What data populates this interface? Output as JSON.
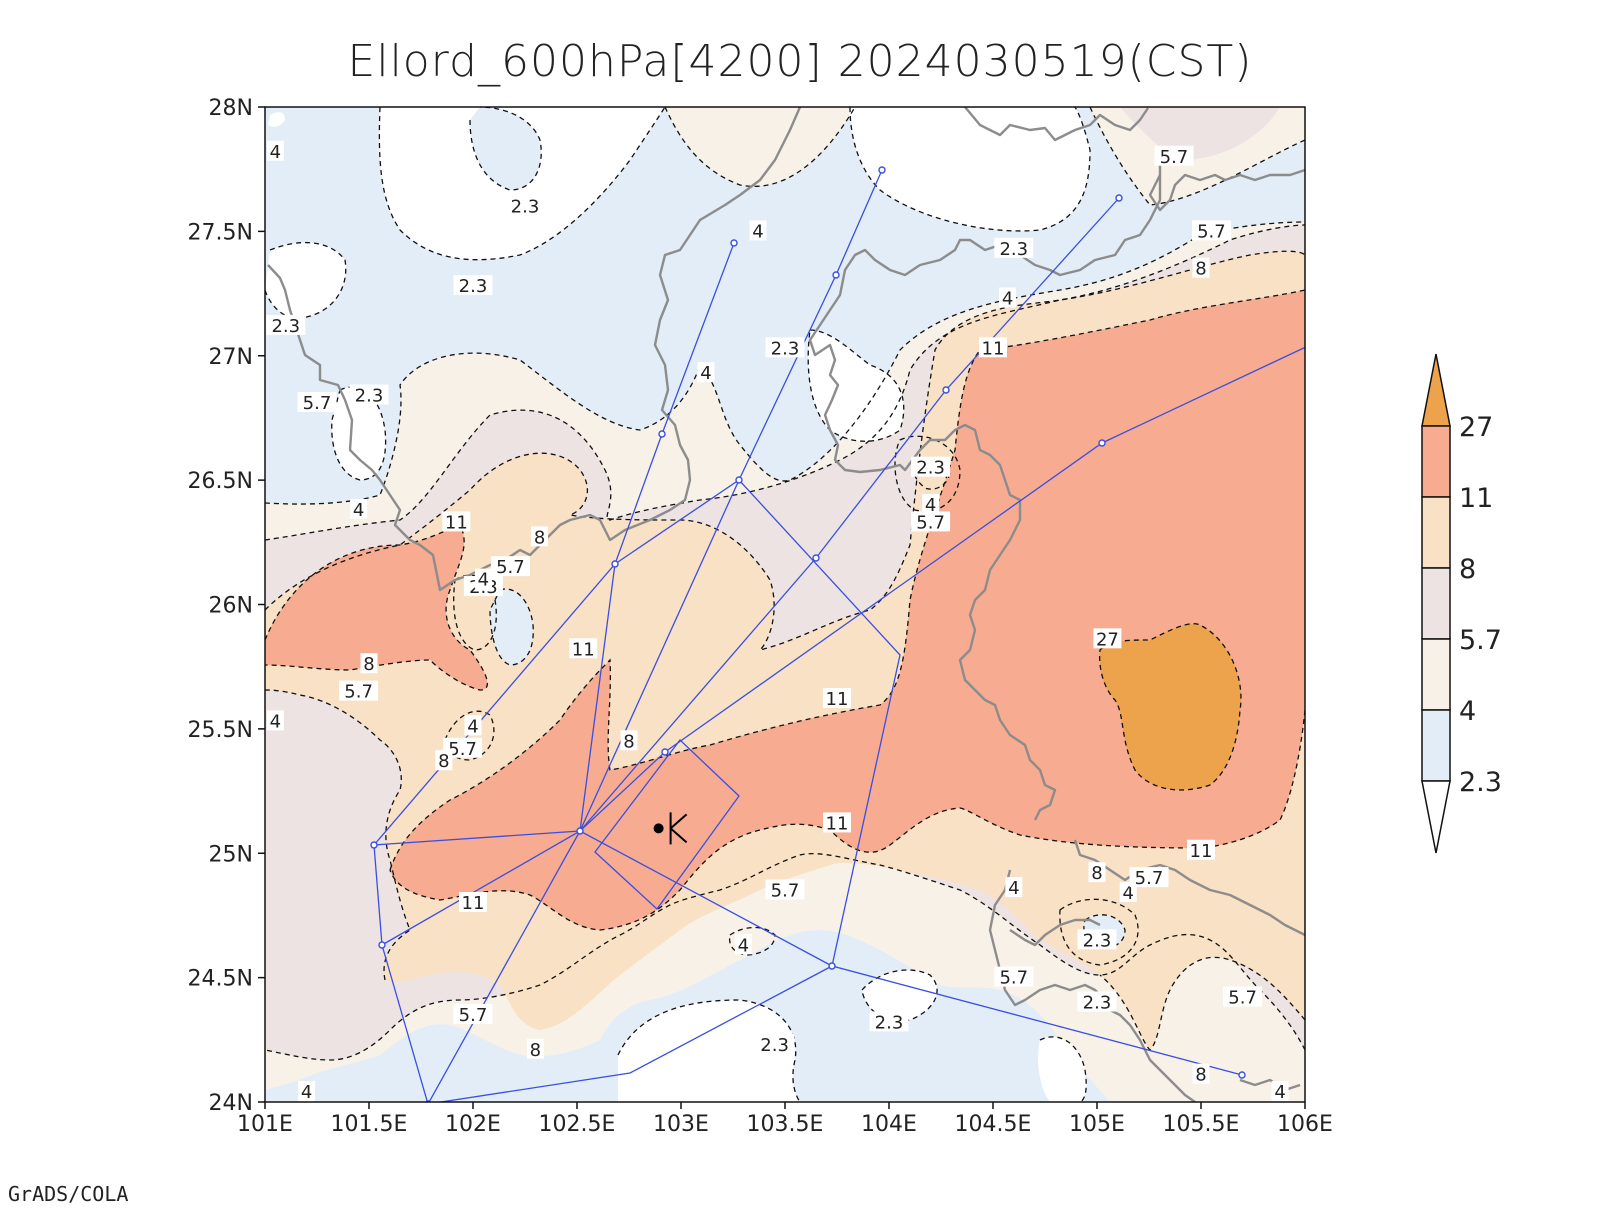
{
  "title": "Ellord_600hPa[4200] 2024030519(CST)",
  "credit": "GrADS/COLA",
  "map": {
    "lon_range": [
      101,
      106
    ],
    "lat_range": [
      24,
      28
    ],
    "x_ticks": [
      "101E",
      "101.5E",
      "102E",
      "102.5E",
      "103E",
      "103.5E",
      "104E",
      "104.5E",
      "105E",
      "105.5E",
      "106E"
    ],
    "y_ticks": [
      "24N",
      "24.5N",
      "25N",
      "25.5N",
      "26N",
      "26.5N",
      "27N",
      "27.5N",
      "28N"
    ],
    "contour_labels": [
      {
        "text": "2.3",
        "lon": 102.25,
        "lat": 27.6
      },
      {
        "text": "2.3",
        "lon": 102.0,
        "lat": 27.28
      },
      {
        "text": "2.3",
        "lon": 101.1,
        "lat": 27.12
      },
      {
        "text": "2.3",
        "lon": 101.5,
        "lat": 26.84
      },
      {
        "text": "2.3",
        "lon": 103.5,
        "lat": 27.03
      },
      {
        "text": "2.3",
        "lon": 104.6,
        "lat": 27.43
      },
      {
        "text": "2.3",
        "lon": 104.2,
        "lat": 26.55
      },
      {
        "text": "2.3",
        "lon": 102.05,
        "lat": 26.07
      },
      {
        "text": "2.3",
        "lon": 103.45,
        "lat": 24.23
      },
      {
        "text": "2.3",
        "lon": 104.0,
        "lat": 24.32
      },
      {
        "text": "2.3",
        "lon": 105.0,
        "lat": 24.65
      },
      {
        "text": "2.3",
        "lon": 105.0,
        "lat": 24.4
      },
      {
        "text": "4",
        "lon": 101.05,
        "lat": 27.82
      },
      {
        "text": "4",
        "lon": 103.37,
        "lat": 27.5
      },
      {
        "text": "4",
        "lon": 103.12,
        "lat": 26.93
      },
      {
        "text": "4",
        "lon": 101.45,
        "lat": 26.38
      },
      {
        "text": "4",
        "lon": 102.05,
        "lat": 26.1
      },
      {
        "text": "4",
        "lon": 102.0,
        "lat": 25.51
      },
      {
        "text": "4",
        "lon": 101.05,
        "lat": 25.53
      },
      {
        "text": "4",
        "lon": 103.3,
        "lat": 24.63
      },
      {
        "text": "4",
        "lon": 104.57,
        "lat": 27.23
      },
      {
        "text": "4",
        "lon": 104.2,
        "lat": 26.4
      },
      {
        "text": "4",
        "lon": 104.6,
        "lat": 24.86
      },
      {
        "text": "4",
        "lon": 105.15,
        "lat": 24.84
      },
      {
        "text": "4",
        "lon": 105.88,
        "lat": 24.04
      },
      {
        "text": "4",
        "lon": 101.2,
        "lat": 24.04
      },
      {
        "text": "5.7",
        "lon": 101.25,
        "lat": 26.81
      },
      {
        "text": "5.7",
        "lon": 102.18,
        "lat": 26.15
      },
      {
        "text": "5.7",
        "lon": 101.45,
        "lat": 25.65
      },
      {
        "text": "5.7",
        "lon": 101.95,
        "lat": 25.42
      },
      {
        "text": "5.7",
        "lon": 103.5,
        "lat": 24.85
      },
      {
        "text": "5.7",
        "lon": 104.2,
        "lat": 26.33
      },
      {
        "text": "5.7",
        "lon": 105.37,
        "lat": 27.8
      },
      {
        "text": "5.7",
        "lon": 105.55,
        "lat": 27.5
      },
      {
        "text": "5.7",
        "lon": 105.25,
        "lat": 24.9
      },
      {
        "text": "5.7",
        "lon": 104.6,
        "lat": 24.5
      },
      {
        "text": "5.7",
        "lon": 105.7,
        "lat": 24.42
      },
      {
        "text": "5.7",
        "lon": 102.0,
        "lat": 24.35
      },
      {
        "text": "8",
        "lon": 102.32,
        "lat": 26.27
      },
      {
        "text": "8",
        "lon": 101.5,
        "lat": 25.76
      },
      {
        "text": "8",
        "lon": 101.86,
        "lat": 25.37
      },
      {
        "text": "8",
        "lon": 102.75,
        "lat": 25.45
      },
      {
        "text": "8",
        "lon": 102.3,
        "lat": 24.21
      },
      {
        "text": "8",
        "lon": 105.5,
        "lat": 27.35
      },
      {
        "text": "8",
        "lon": 105.0,
        "lat": 24.92
      },
      {
        "text": "8",
        "lon": 105.5,
        "lat": 24.11
      },
      {
        "text": "11",
        "lon": 101.92,
        "lat": 26.33
      },
      {
        "text": "11",
        "lon": 102.53,
        "lat": 25.82
      },
      {
        "text": "11",
        "lon": 103.75,
        "lat": 25.62
      },
      {
        "text": "11",
        "lon": 103.75,
        "lat": 25.12
      },
      {
        "text": "11",
        "lon": 102.0,
        "lat": 24.8
      },
      {
        "text": "11",
        "lon": 104.5,
        "lat": 27.03
      },
      {
        "text": "11",
        "lon": 105.5,
        "lat": 25.01
      },
      {
        "text": "27",
        "lon": 105.05,
        "lat": 25.86
      }
    ]
  },
  "colorbar": {
    "levels": [
      "2.3",
      "4",
      "5.7",
      "8",
      "11",
      "27"
    ],
    "colors": {
      "below_2_3": "#ffffff",
      "l2_3_4": "#e2edf8",
      "l4_5_7": "#f8f1e8",
      "l5_7_8": "#ede3e3",
      "l8_11": "#f9e1c5",
      "l11_27": "#f7ab90",
      "above_27": "#eda24c"
    }
  },
  "station": {
    "lon": 102.95,
    "lat": 25.1
  }
}
